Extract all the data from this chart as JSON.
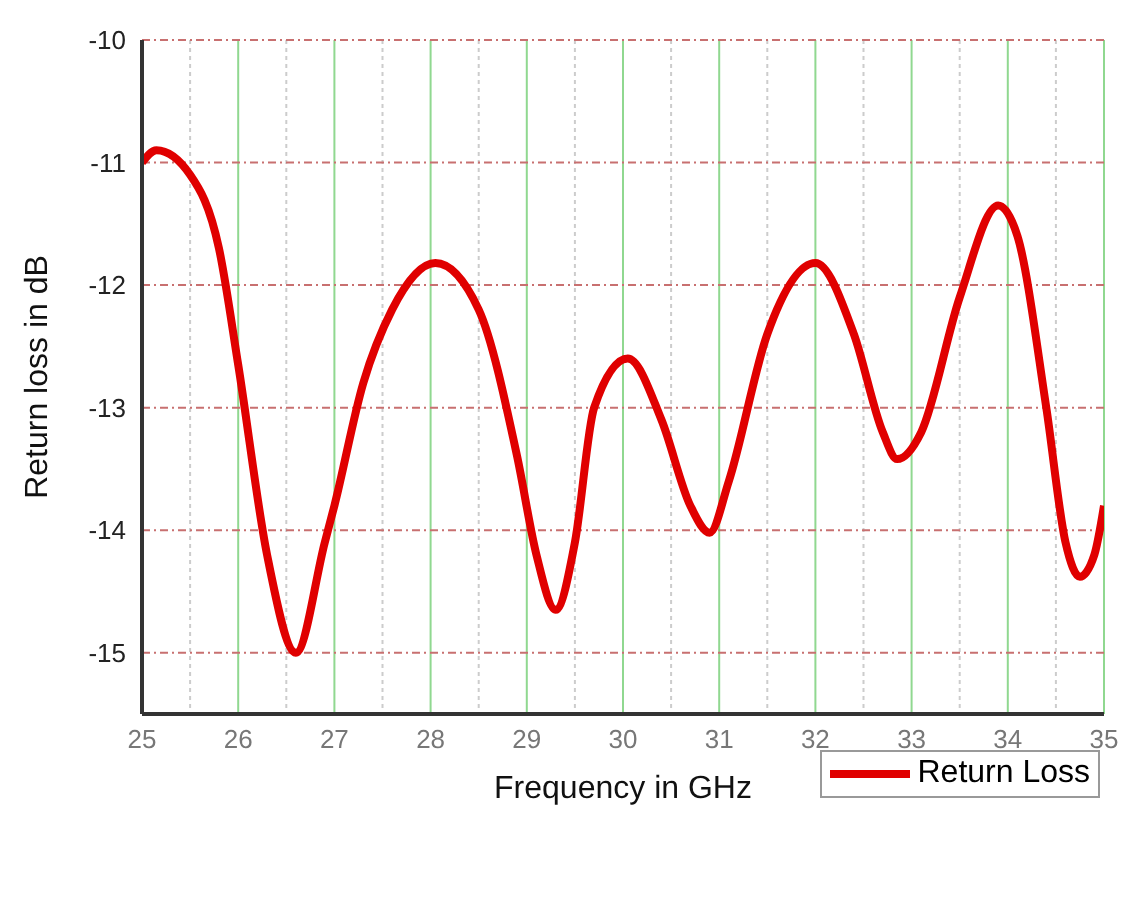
{
  "chart_data": {
    "type": "line",
    "xlabel": "Frequency in GHz",
    "ylabel": "Return loss in dB",
    "x": [
      25,
      25.15,
      25.5,
      25.8,
      26,
      26.3,
      26.6,
      26.9,
      27,
      27.3,
      27.6,
      28.05,
      28.5,
      28.9,
      29.1,
      29.3,
      29.5,
      29.7,
      30.05,
      30.4,
      30.7,
      30.9,
      31.1,
      31.5,
      32,
      32.4,
      32.7,
      32.85,
      33.1,
      33.5,
      33.9,
      34.1,
      34.4,
      34.6,
      34.75,
      34.9,
      35
    ],
    "series": [
      {
        "name": "Return Loss",
        "color": "#e00000",
        "values": [
          -11.0,
          -10.9,
          -11.1,
          -11.7,
          -12.65,
          -14.2,
          -15.0,
          -14.1,
          -13.8,
          -12.8,
          -12.2,
          -11.82,
          -12.2,
          -13.4,
          -14.2,
          -14.65,
          -14.1,
          -13.0,
          -12.6,
          -13.1,
          -13.8,
          -14.02,
          -13.6,
          -12.4,
          -11.82,
          -12.4,
          -13.2,
          -13.42,
          -13.2,
          -12.1,
          -11.35,
          -11.6,
          -13.0,
          -14.1,
          -14.38,
          -14.2,
          -13.8
        ]
      }
    ],
    "xlim": [
      25,
      35
    ],
    "xticks": [
      25,
      26,
      27,
      28,
      29,
      30,
      31,
      32,
      33,
      34,
      35
    ],
    "ylim": [
      -15.5,
      -10
    ],
    "yticks": [
      -15,
      -14,
      -13,
      -12,
      -11,
      -10
    ],
    "grid": true,
    "legend": "bottom right",
    "marker": "none",
    "line_style": "solid"
  }
}
